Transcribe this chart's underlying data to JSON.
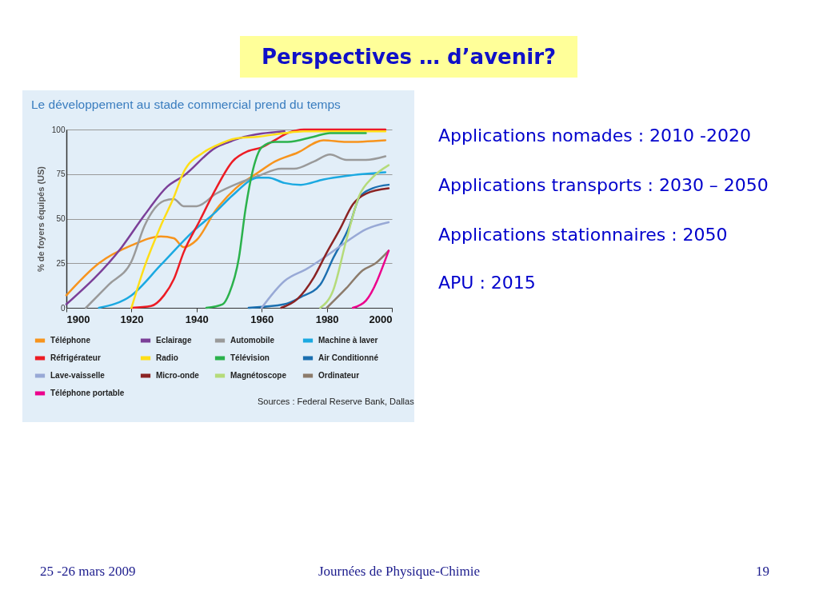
{
  "chart_data": {
    "type": "line",
    "title": "Perspectives … d’avenir?",
    "subtitle": "Le développement au stade commercial prend du temps",
    "ylabel": "% de foyers équipés (US)",
    "xlim": [
      1900,
      2000
    ],
    "xticks": [
      1900,
      1920,
      1940,
      1960,
      1980,
      2000
    ],
    "ylim": [
      0,
      100
    ],
    "yticks": [
      0,
      25,
      50,
      75,
      100
    ],
    "grid": "y",
    "legend": "bottom",
    "series": [
      {
        "name": "Téléphone",
        "color": "#f7941d",
        "x": [
          1900,
          1910,
          1920,
          1929,
          1933,
          1936,
          1940,
          1946,
          1952,
          1959,
          1964,
          1971,
          1979,
          1986,
          1998
        ],
        "values": [
          7,
          25,
          35,
          40,
          39,
          34,
          38,
          55,
          67,
          76,
          82,
          87,
          94,
          93,
          94
        ]
      },
      {
        "name": "Eclairage",
        "color": "#7b3f98",
        "x": [
          1900,
          1917,
          1924,
          1931,
          1936,
          1946,
          1950,
          1953,
          1967
        ],
        "values": [
          2,
          34,
          52,
          68,
          74,
          90,
          93,
          95,
          99
        ]
      },
      {
        "name": "Automobile",
        "color": "#9a9a9a",
        "x": [
          1906,
          1913,
          1920,
          1924,
          1930,
          1933,
          1936,
          1940,
          1946,
          1953,
          1959,
          1966,
          1970,
          1976,
          1981,
          1986,
          1992,
          1998
        ],
        "values": [
          0,
          13,
          26,
          46,
          60,
          61,
          57,
          57,
          64,
          70,
          74,
          78,
          78,
          82,
          86,
          83,
          83,
          85
        ]
      },
      {
        "name": "Machine à laver",
        "color": "#1ba9e1",
        "x": [
          1910,
          1920,
          1929,
          1939,
          1946,
          1951,
          1959,
          1962,
          1967,
          1972,
          1979,
          1986,
          1998
        ],
        "values": [
          0,
          7,
          24,
          43,
          54,
          63,
          73,
          73,
          70,
          69,
          72,
          74,
          76
        ]
      },
      {
        "name": "Réfrigérateur",
        "color": "#ed1c24",
        "x": [
          1920,
          1926,
          1930,
          1933,
          1936,
          1941,
          1946,
          1951,
          1956,
          1960,
          1964,
          1968,
          1973,
          1998
        ],
        "values": [
          0,
          1,
          7,
          16,
          31,
          49,
          67,
          82,
          88,
          90,
          94,
          98,
          100,
          100
        ]
      },
      {
        "name": "Radio",
        "color": "#ffde17",
        "x": [
          1920,
          1924,
          1929,
          1933,
          1936,
          1942,
          1946,
          1952,
          1959,
          1967,
          1973,
          1998
        ],
        "values": [
          0,
          23,
          46,
          62,
          76,
          87,
          91,
          95,
          96,
          98,
          99,
          99
        ]
      },
      {
        "name": "Télévision",
        "color": "#2bb24c",
        "x": [
          1943,
          1948,
          1950,
          1953,
          1955,
          1958,
          1960,
          1964,
          1968,
          1976,
          1981,
          1992
        ],
        "values": [
          0,
          2,
          8,
          28,
          55,
          82,
          90,
          93,
          93,
          96,
          98,
          98
        ]
      },
      {
        "name": "Air Conditionné",
        "color": "#1b6fb0",
        "x": [
          1956,
          1967,
          1972,
          1978,
          1982,
          1987,
          1990,
          1994,
          1999
        ],
        "values": [
          0,
          2,
          6,
          13,
          28,
          46,
          62,
          67,
          69
        ]
      },
      {
        "name": "Lave-vaisselle",
        "color": "#98a9d6",
        "x": [
          1960,
          1967,
          1974,
          1979,
          1986,
          1992,
          1999
        ],
        "values": [
          0,
          15,
          22,
          28,
          37,
          44,
          48
        ]
      },
      {
        "name": "Micro-onde",
        "color": "#8b2323",
        "x": [
          1966,
          1971,
          1976,
          1980,
          1984,
          1988,
          1992,
          1999
        ],
        "values": [
          0,
          5,
          17,
          31,
          44,
          58,
          64,
          67
        ]
      },
      {
        "name": "Magnétoscope",
        "color": "#b5db7a",
        "x": [
          1978,
          1982,
          1986,
          1990,
          1994,
          1999
        ],
        "values": [
          0,
          10,
          38,
          63,
          73,
          80
        ]
      },
      {
        "name": "Ordinateur",
        "color": "#8c7b6b",
        "x": [
          1980,
          1986,
          1991,
          1995,
          1999
        ],
        "values": [
          0,
          11,
          21,
          25,
          32
        ]
      },
      {
        "name": "Téléphone portable",
        "color": "#ec008c",
        "x": [
          1988,
          1992,
          1999
        ],
        "values": [
          0,
          4,
          32
        ]
      }
    ],
    "annotations": [
      "Applications nomades : 2010 -2020",
      "Applications transports : 2030 – 2050",
      "Applications stationnaires : 2050",
      "APU : 2015",
      "Sources : Federal Reserve Bank, Dallas",
      "25 -26 mars 2009",
      "Journées de Physique-Chimie",
      "19"
    ]
  }
}
